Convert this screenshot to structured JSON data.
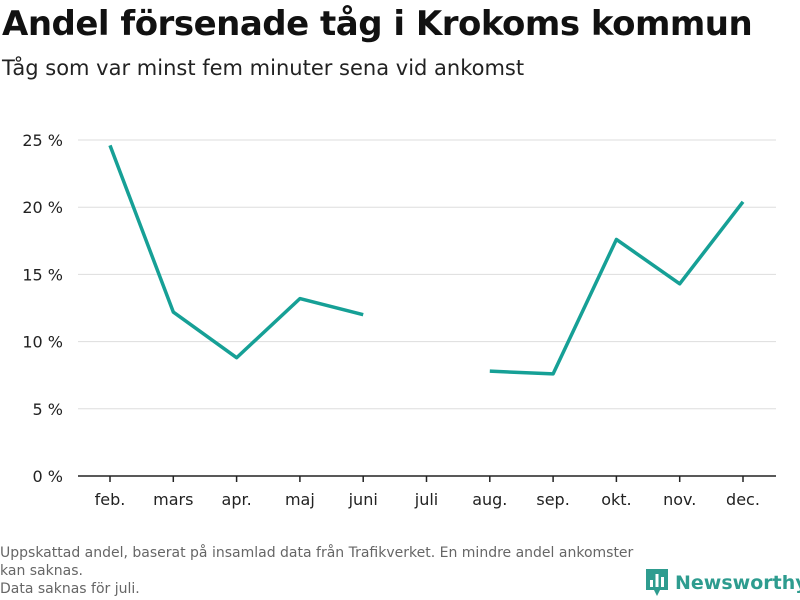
{
  "title": "Andel försenade tåg i Krokoms kommun",
  "subtitle": "Tåg som var minst fem minuter sena vid ankomst",
  "footnote": {
    "line1": "Uppskattad andel, baserat på insamlad data från Trafikverket. En mindre andel ankomster kan saknas.",
    "line2": "Data saknas för juli."
  },
  "brand": {
    "name": "Newsworthy",
    "icon": "bar-chart-logo-icon"
  },
  "colors": {
    "line": "#16a096",
    "grid": "#dddddd",
    "axis": "#222222",
    "brand": "#2e9c8f"
  },
  "chart_data": {
    "type": "line",
    "title": "Andel försenade tåg i Krokoms kommun",
    "subtitle": "Tåg som var minst fem minuter sena vid ankomst",
    "categories": [
      "feb.",
      "mars",
      "apr.",
      "maj",
      "juni",
      "juli",
      "aug.",
      "sep.",
      "okt.",
      "nov.",
      "dec."
    ],
    "series": [
      {
        "values": [
          24.6,
          12.2,
          8.8,
          13.2,
          12.0,
          null,
          7.8,
          7.6,
          17.6,
          14.3,
          20.4
        ]
      }
    ],
    "yticks": [
      0,
      5,
      10,
      15,
      20,
      25
    ],
    "ytick_labels": [
      "0 %",
      "5 %",
      "10 %",
      "15 %",
      "20 %",
      "25 %"
    ],
    "ylim": [
      0,
      25
    ],
    "grid": true
  }
}
